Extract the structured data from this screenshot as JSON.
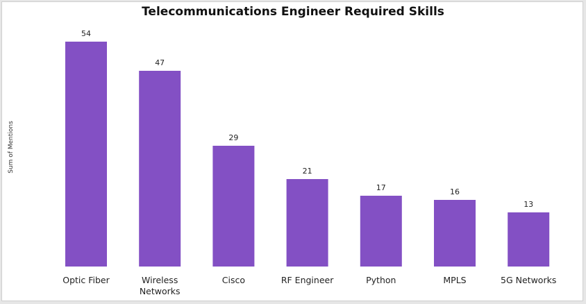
{
  "chart_data": {
    "type": "bar",
    "title": "Telecommunications Engineer Required Skills",
    "xlabel": "",
    "ylabel": "Sum of Mentions",
    "categories": [
      "Optic Fiber",
      "Wireless Networks",
      "Cisco",
      "RF Engineer",
      "Python",
      "MPLS",
      "5G Networks"
    ],
    "category_lines": [
      [
        "Optic Fiber"
      ],
      [
        "Wireless",
        "Networks"
      ],
      [
        "Cisco"
      ],
      [
        "RF Engineer"
      ],
      [
        "Python"
      ],
      [
        "MPLS"
      ],
      [
        "5G Networks"
      ]
    ],
    "values": [
      54,
      47,
      29,
      21,
      17,
      16,
      13
    ],
    "ylim": [
      0,
      54
    ],
    "grid": false,
    "legend": "none",
    "bar_color": "#8350C4"
  }
}
